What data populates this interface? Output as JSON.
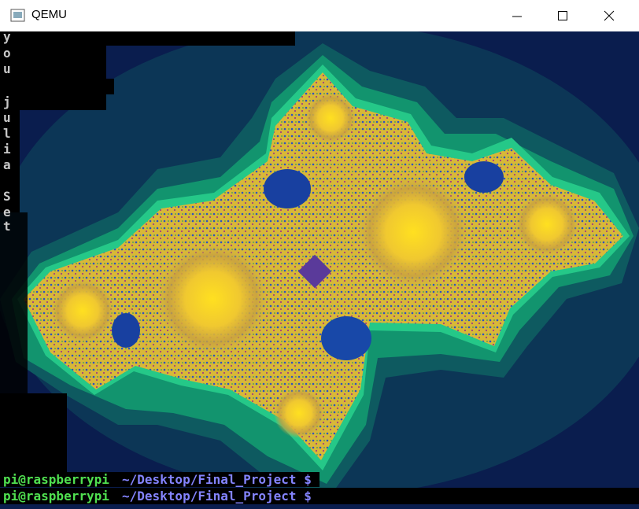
{
  "window": {
    "title": "QEMU"
  },
  "terminal": {
    "side_text": [
      "y",
      "o",
      "u",
      "j",
      "u",
      "l",
      "i",
      "a",
      "S",
      "e",
      "t"
    ],
    "prompts": [
      {
        "user": "pi@raspberrypi",
        "path": "~/Desktop/Final_Project $"
      },
      {
        "user": "pi@raspberrypi",
        "path": "~/Desktop/Final_Project $"
      }
    ]
  }
}
